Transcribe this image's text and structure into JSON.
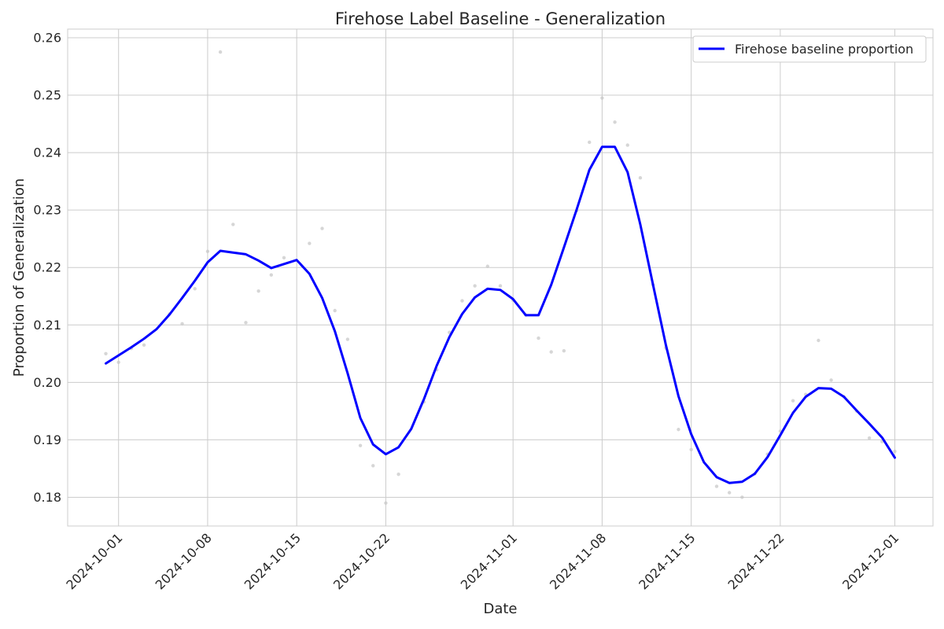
{
  "chart_data": {
    "type": "line",
    "title": "Firehose Label Baseline - Generalization",
    "xlabel": "Date",
    "ylabel": "Proportion of Generalization",
    "x_range": [
      "2024-09-27",
      "2024-12-04"
    ],
    "ylim": [
      0.175,
      0.2615
    ],
    "x_ticks": [
      "2024-10-01",
      "2024-10-08",
      "2024-10-15",
      "2024-10-22",
      "2024-11-01",
      "2024-11-08",
      "2024-11-15",
      "2024-11-22",
      "2024-12-01"
    ],
    "y_ticks": [
      0.18,
      0.19,
      0.2,
      0.21,
      0.22,
      0.23,
      0.24,
      0.25,
      0.26
    ],
    "y_tick_labels": [
      "0.18",
      "0.19",
      "0.20",
      "0.21",
      "0.22",
      "0.23",
      "0.24",
      "0.25",
      "0.26"
    ],
    "grid": true,
    "legend_position": "top-right",
    "series": [
      {
        "name": "Firehose baseline proportion",
        "color": "#0000ff",
        "points": [
          [
            "2024-09-30",
            0.2033
          ],
          [
            "2024-10-01",
            0.2047
          ],
          [
            "2024-10-02",
            0.2061
          ],
          [
            "2024-10-03",
            0.2076
          ],
          [
            "2024-10-04",
            0.2093
          ],
          [
            "2024-10-05",
            0.2118
          ],
          [
            "2024-10-06",
            0.2147
          ],
          [
            "2024-10-07",
            0.2177
          ],
          [
            "2024-10-08",
            0.2209
          ],
          [
            "2024-10-09",
            0.2229
          ],
          [
            "2024-10-10",
            0.2226
          ],
          [
            "2024-10-11",
            0.2223
          ],
          [
            "2024-10-12",
            0.2212
          ],
          [
            "2024-10-13",
            0.2199
          ],
          [
            "2024-10-14",
            0.2206
          ],
          [
            "2024-10-15",
            0.2213
          ],
          [
            "2024-10-16",
            0.2189
          ],
          [
            "2024-10-17",
            0.2147
          ],
          [
            "2024-10-18",
            0.2089
          ],
          [
            "2024-10-19",
            0.2016
          ],
          [
            "2024-10-20",
            0.1938
          ],
          [
            "2024-10-21",
            0.1892
          ],
          [
            "2024-10-22",
            0.1875
          ],
          [
            "2024-10-23",
            0.1887
          ],
          [
            "2024-10-24",
            0.1919
          ],
          [
            "2024-10-25",
            0.1971
          ],
          [
            "2024-10-26",
            0.2029
          ],
          [
            "2024-10-27",
            0.2079
          ],
          [
            "2024-10-28",
            0.2119
          ],
          [
            "2024-10-29",
            0.2148
          ],
          [
            "2024-10-30",
            0.2163
          ],
          [
            "2024-10-31",
            0.2161
          ],
          [
            "2024-11-01",
            0.2145
          ],
          [
            "2024-11-02",
            0.2117
          ],
          [
            "2024-11-03",
            0.2117
          ],
          [
            "2024-11-04",
            0.217
          ],
          [
            "2024-11-05",
            0.2235
          ],
          [
            "2024-11-06",
            0.2301
          ],
          [
            "2024-11-07",
            0.237
          ],
          [
            "2024-11-08",
            0.241
          ],
          [
            "2024-11-09",
            0.241
          ],
          [
            "2024-11-10",
            0.2366
          ],
          [
            "2024-11-11",
            0.2275
          ],
          [
            "2024-11-12",
            0.217
          ],
          [
            "2024-11-13",
            0.2066
          ],
          [
            "2024-11-14",
            0.1976
          ],
          [
            "2024-11-15",
            0.191
          ],
          [
            "2024-11-16",
            0.1861
          ],
          [
            "2024-11-17",
            0.1835
          ],
          [
            "2024-11-18",
            0.1825
          ],
          [
            "2024-11-19",
            0.1827
          ],
          [
            "2024-11-20",
            0.1841
          ],
          [
            "2024-11-21",
            0.187
          ],
          [
            "2024-11-22",
            0.1908
          ],
          [
            "2024-11-23",
            0.1947
          ],
          [
            "2024-11-24",
            0.1975
          ],
          [
            "2024-11-25",
            0.199
          ],
          [
            "2024-11-26",
            0.1989
          ],
          [
            "2024-11-27",
            0.1975
          ],
          [
            "2024-11-28",
            0.1951
          ],
          [
            "2024-11-29",
            0.1928
          ],
          [
            "2024-11-30",
            0.1904
          ],
          [
            "2024-12-01",
            0.1869
          ]
        ]
      }
    ],
    "scatter_points": {
      "color": "#c8c8c8",
      "points": [
        [
          "2024-09-30",
          0.205
        ],
        [
          "2024-10-01",
          0.2035
        ],
        [
          "2024-10-02",
          0.2059
        ],
        [
          "2024-10-03",
          0.2065
        ],
        [
          "2024-10-05",
          0.2119
        ],
        [
          "2024-10-06",
          0.2102
        ],
        [
          "2024-10-07",
          0.2163
        ],
        [
          "2024-10-08",
          0.2228
        ],
        [
          "2024-10-09",
          0.2575
        ],
        [
          "2024-10-10",
          0.2275
        ],
        [
          "2024-10-11",
          0.2104
        ],
        [
          "2024-10-12",
          0.2159
        ],
        [
          "2024-10-13",
          0.2187
        ],
        [
          "2024-10-14",
          0.2217
        ],
        [
          "2024-10-16",
          0.2242
        ],
        [
          "2024-10-17",
          0.2268
        ],
        [
          "2024-10-18",
          0.2125
        ],
        [
          "2024-10-19",
          0.2075
        ],
        [
          "2024-10-20",
          0.189
        ],
        [
          "2024-10-21",
          0.1855
        ],
        [
          "2024-10-22",
          0.179
        ],
        [
          "2024-10-23",
          0.184
        ],
        [
          "2024-10-25",
          0.1966
        ],
        [
          "2024-10-26",
          0.2022
        ],
        [
          "2024-10-27",
          0.2087
        ],
        [
          "2024-10-28",
          0.2142
        ],
        [
          "2024-10-29",
          0.2168
        ],
        [
          "2024-10-30",
          0.2202
        ],
        [
          "2024-10-31",
          0.2168
        ],
        [
          "2024-11-01",
          0.2143
        ],
        [
          "2024-11-02",
          0.2117
        ],
        [
          "2024-11-03",
          0.2077
        ],
        [
          "2024-11-04",
          0.2053
        ],
        [
          "2024-11-05",
          0.2055
        ],
        [
          "2024-11-06",
          0.2299
        ],
        [
          "2024-11-07",
          0.2418
        ],
        [
          "2024-11-08",
          0.2495
        ],
        [
          "2024-11-09",
          0.2453
        ],
        [
          "2024-11-10",
          0.2413
        ],
        [
          "2024-11-11",
          0.2356
        ],
        [
          "2024-11-12",
          0.217
        ],
        [
          "2024-11-13",
          0.206
        ],
        [
          "2024-11-14",
          0.1918
        ],
        [
          "2024-11-15",
          0.1883
        ],
        [
          "2024-11-17",
          0.1819
        ],
        [
          "2024-11-18",
          0.1808
        ],
        [
          "2024-11-19",
          0.18
        ],
        [
          "2024-11-20",
          0.1841
        ],
        [
          "2024-11-21",
          0.1875
        ],
        [
          "2024-11-22",
          0.1915
        ],
        [
          "2024-11-23",
          0.1968
        ],
        [
          "2024-11-24",
          0.1979
        ],
        [
          "2024-11-25",
          0.2073
        ],
        [
          "2024-11-26",
          0.2004
        ],
        [
          "2024-11-27",
          0.1975
        ],
        [
          "2024-11-28",
          0.195
        ],
        [
          "2024-11-29",
          0.1903
        ],
        [
          "2024-11-30",
          0.1897
        ],
        [
          "2024-12-01",
          0.188
        ]
      ]
    }
  }
}
